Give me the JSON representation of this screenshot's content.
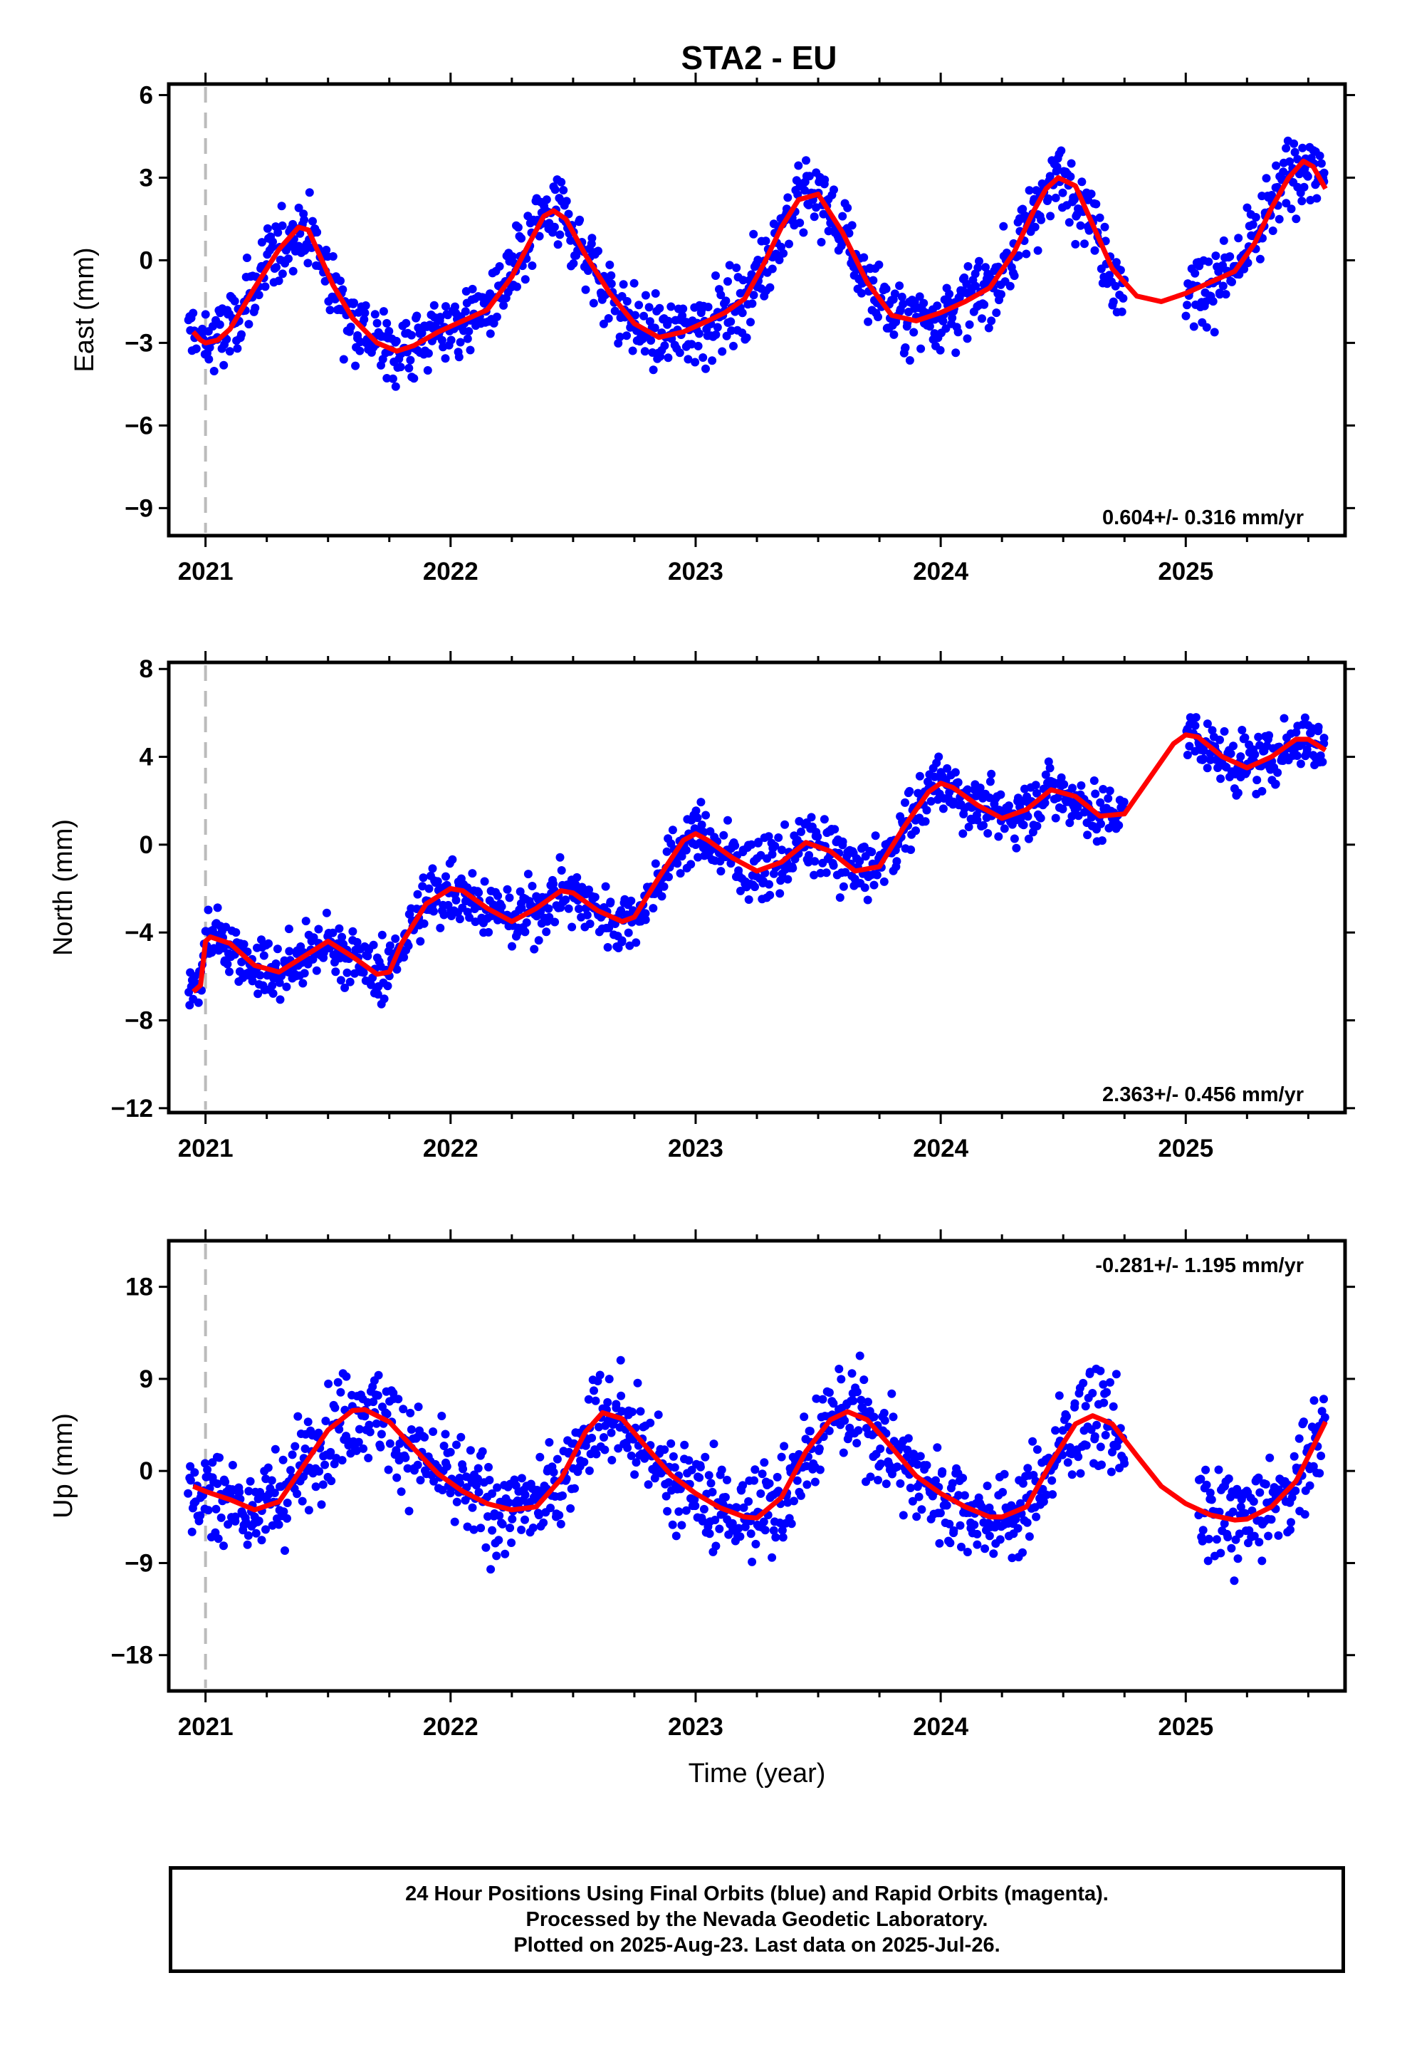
{
  "page": {
    "title": "STA2 - EU",
    "footer": [
      "24 Hour Positions Using Final Orbits (blue) and Rapid Orbits (magenta).",
      "Processed by the Nevada Geodetic Laboratory.",
      "Plotted on 2025-Aug-23. Last data on 2025-Jul-26."
    ]
  },
  "colors": {
    "points": "#0000ff",
    "model": "#ff0000",
    "marker": "#bbbbbb",
    "frame": "#000000"
  },
  "chart_data": [
    {
      "type": "scatter",
      "title": "STA2 - EU",
      "ylabel": "East (mm)",
      "xlabel": "",
      "xlim": [
        2020.85,
        2025.65
      ],
      "ylim": [
        -10,
        6.4
      ],
      "yticks": [
        6,
        3,
        0,
        -3,
        -6,
        -9
      ],
      "ytick_labels": [
        "6",
        "3",
        "0",
        "−3",
        "−6",
        "−9"
      ],
      "xticks": [
        2021,
        2022,
        2023,
        2024,
        2025
      ],
      "xtick_labels": [
        "2021",
        "2022",
        "2023",
        "2024",
        "2025"
      ],
      "rate": "0.604+/- 0.316 mm/yr",
      "rate_position": "bottom-right",
      "vertical_marker": 2021.0,
      "model": {
        "name": "",
        "x": [
          2020.95,
          2020.98,
          2021.0,
          2021.05,
          2021.1,
          2021.2,
          2021.3,
          2021.38,
          2021.42,
          2021.46,
          2021.52,
          2021.6,
          2021.7,
          2021.78,
          2021.85,
          2021.95,
          2022.05,
          2022.15,
          2022.25,
          2022.32,
          2022.38,
          2022.42,
          2022.47,
          2022.55,
          2022.65,
          2022.75,
          2022.85,
          2022.95,
          2023.05,
          2023.12,
          2023.2,
          2023.28,
          2023.35,
          2023.42,
          2023.5,
          2023.6,
          2023.7,
          2023.8,
          2023.9,
          2024.0,
          2024.1,
          2024.2,
          2024.3,
          2024.38,
          2024.43,
          2024.48,
          2024.55,
          2024.62,
          2024.7,
          2024.8,
          2024.9,
          2025.0,
          2025.1,
          2025.2,
          2025.28,
          2025.35,
          2025.42,
          2025.48,
          2025.52,
          2025.57
        ],
        "y": [
          -2.6,
          -2.9,
          -3.0,
          -2.9,
          -2.5,
          -1.0,
          0.4,
          1.2,
          1.1,
          0.3,
          -0.9,
          -2.1,
          -3.0,
          -3.3,
          -3.1,
          -2.6,
          -2.2,
          -1.8,
          -0.6,
          0.6,
          1.6,
          1.8,
          1.5,
          0.2,
          -1.2,
          -2.3,
          -2.8,
          -2.6,
          -2.2,
          -1.9,
          -1.4,
          -0.1,
          1.2,
          2.2,
          2.4,
          1.0,
          -0.8,
          -2.0,
          -2.2,
          -1.9,
          -1.5,
          -1.0,
          0.3,
          1.8,
          2.6,
          3.0,
          2.7,
          1.3,
          -0.3,
          -1.3,
          -1.5,
          -1.2,
          -0.8,
          -0.4,
          0.6,
          1.9,
          3.0,
          3.6,
          3.4,
          2.6
        ]
      },
      "noise": 1.25,
      "gaps": [
        [
          2024.75,
          2025.0
        ]
      ]
    },
    {
      "type": "scatter",
      "title": "",
      "ylabel": "North (mm)",
      "xlabel": "",
      "xlim": [
        2020.85,
        2025.65
      ],
      "ylim": [
        -12.2,
        8.3
      ],
      "yticks": [
        8,
        4,
        0,
        -4,
        -8,
        -12
      ],
      "ytick_labels": [
        "8",
        "4",
        "0",
        "−4",
        "−8",
        "−12"
      ],
      "xticks": [
        2021,
        2022,
        2023,
        2024,
        2025
      ],
      "xtick_labels": [
        "2021",
        "2022",
        "2023",
        "2024",
        "2025"
      ],
      "rate": "2.363+/- 0.456 mm/yr",
      "rate_position": "bottom-right",
      "vertical_marker": 2021.0,
      "model": {
        "name": "",
        "x": [
          2020.95,
          2020.98,
          2021.0,
          2021.02,
          2021.1,
          2021.2,
          2021.3,
          2021.4,
          2021.5,
          2021.6,
          2021.7,
          2021.75,
          2021.8,
          2021.9,
          2022.0,
          2022.05,
          2022.15,
          2022.25,
          2022.35,
          2022.45,
          2022.5,
          2022.6,
          2022.7,
          2022.75,
          2022.85,
          2022.95,
          2023.0,
          2023.05,
          2023.15,
          2023.25,
          2023.35,
          2023.45,
          2023.55,
          2023.65,
          2023.75,
          2023.85,
          2023.95,
          2024.0,
          2024.05,
          2024.15,
          2024.25,
          2024.35,
          2024.45,
          2024.55,
          2024.65,
          2024.75,
          2024.85,
          2024.95,
          2025.0,
          2025.05,
          2025.15,
          2025.25,
          2025.35,
          2025.45,
          2025.5,
          2025.57
        ],
        "y": [
          -6.7,
          -6.4,
          -4.4,
          -4.2,
          -4.5,
          -5.5,
          -5.8,
          -5.1,
          -4.4,
          -5.1,
          -5.9,
          -5.8,
          -4.5,
          -2.7,
          -2.0,
          -2.1,
          -2.9,
          -3.5,
          -2.9,
          -2.1,
          -2.2,
          -3.0,
          -3.5,
          -3.3,
          -1.5,
          0.2,
          0.5,
          0.2,
          -0.6,
          -1.2,
          -0.8,
          0.1,
          -0.3,
          -1.2,
          -1.0,
          0.8,
          2.4,
          2.8,
          2.6,
          1.8,
          1.2,
          1.6,
          2.5,
          2.2,
          1.3,
          1.4,
          3.0,
          4.6,
          5.0,
          4.9,
          4.0,
          3.5,
          4.0,
          4.8,
          4.8,
          4.3
        ]
      },
      "noise": 1.3,
      "gaps": [
        [
          2024.75,
          2025.0
        ]
      ]
    },
    {
      "type": "scatter",
      "title": "",
      "ylabel": "Up (mm)",
      "xlabel": "Time (year)",
      "xlim": [
        2020.85,
        2025.65
      ],
      "ylim": [
        -21.5,
        22.5
      ],
      "yticks": [
        18,
        9,
        0,
        -9,
        -18
      ],
      "ytick_labels": [
        "18",
        "9",
        "0",
        "−9",
        "−18"
      ],
      "xticks": [
        2021,
        2022,
        2023,
        2024,
        2025
      ],
      "xtick_labels": [
        "2021",
        "2022",
        "2023",
        "2024",
        "2025"
      ],
      "rate": "-0.281+/- 1.195 mm/yr",
      "rate_position": "top-right",
      "vertical_marker": 2021.0,
      "model": {
        "name": "",
        "x": [
          2020.95,
          2021.0,
          2021.1,
          2021.2,
          2021.3,
          2021.4,
          2021.5,
          2021.6,
          2021.65,
          2021.75,
          2021.85,
          2021.95,
          2022.05,
          2022.15,
          2022.25,
          2022.35,
          2022.45,
          2022.55,
          2022.62,
          2022.7,
          2022.8,
          2022.9,
          2023.0,
          2023.1,
          2023.2,
          2023.25,
          2023.35,
          2023.45,
          2023.55,
          2023.62,
          2023.7,
          2023.8,
          2023.9,
          2024.0,
          2024.1,
          2024.2,
          2024.25,
          2024.35,
          2024.45,
          2024.55,
          2024.62,
          2024.7,
          2024.8,
          2024.9,
          2025.0,
          2025.1,
          2025.2,
          2025.25,
          2025.35,
          2025.45,
          2025.57
        ],
        "y": [
          -1.5,
          -2.0,
          -2.8,
          -3.8,
          -3.0,
          0.5,
          4.0,
          5.9,
          6.0,
          4.8,
          2.2,
          -0.3,
          -2.0,
          -3.2,
          -3.8,
          -3.5,
          -0.8,
          3.8,
          5.7,
          5.1,
          2.3,
          -0.4,
          -2.2,
          -3.6,
          -4.5,
          -4.6,
          -2.6,
          1.9,
          5.0,
          5.8,
          5.0,
          2.3,
          -0.5,
          -2.2,
          -3.5,
          -4.5,
          -4.5,
          -3.5,
          0.8,
          4.6,
          5.4,
          4.6,
          1.5,
          -1.5,
          -3.2,
          -4.3,
          -4.8,
          -4.7,
          -3.5,
          -1.0,
          4.8
        ]
      },
      "noise": 4.4,
      "gaps": [
        [
          2024.75,
          2025.05
        ]
      ]
    }
  ]
}
